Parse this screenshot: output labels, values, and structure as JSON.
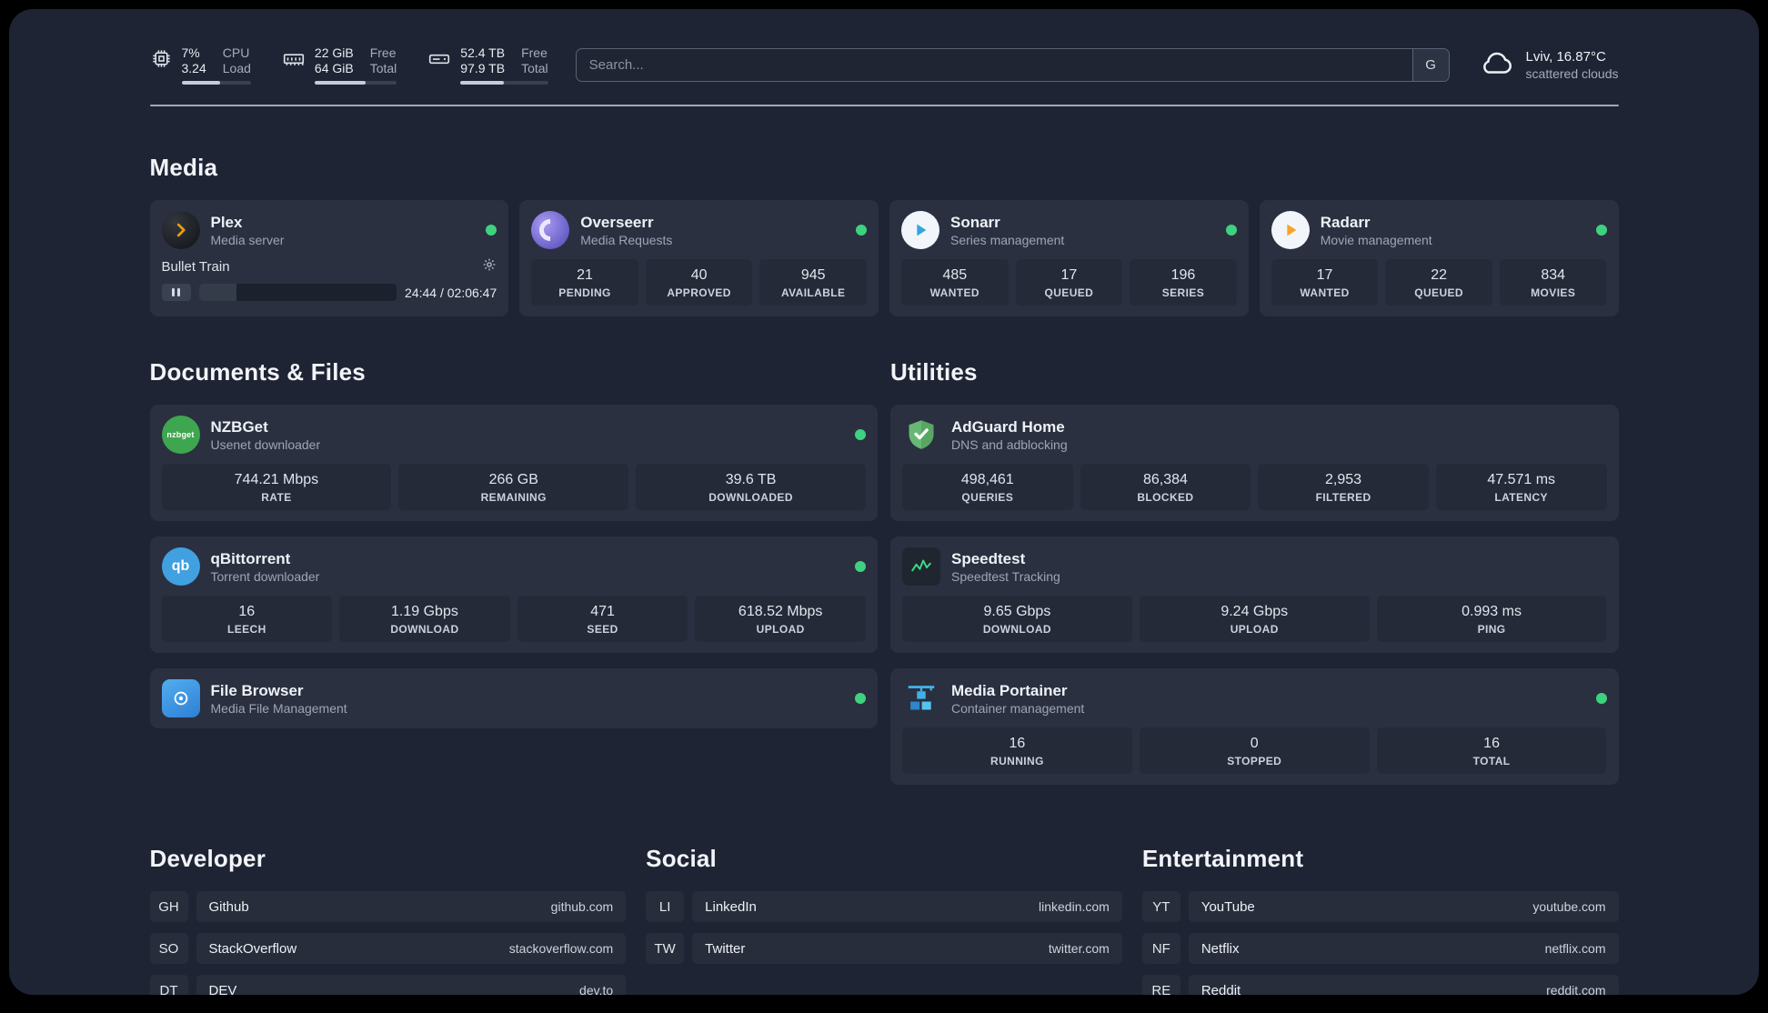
{
  "topbar": {
    "cpu": {
      "value_top": "7%",
      "value_bottom": "3.24",
      "label_top": "CPU",
      "label_bottom": "Load",
      "progress": 55
    },
    "memory": {
      "value_top": "22 GiB",
      "value_bottom": "64 GiB",
      "label_top": "Free",
      "label_bottom": "Total",
      "progress": 62
    },
    "disk": {
      "value_top": "52.4 TB",
      "value_bottom": "97.9 TB",
      "label_top": "Free",
      "label_bottom": "Total",
      "progress": 50
    },
    "search": {
      "placeholder": "Search...",
      "button_label": "G"
    },
    "weather": {
      "location": "Lviv, 16.87°C",
      "condition": "scattered clouds"
    }
  },
  "section_titles": {
    "media": "Media",
    "documents": "Documents & Files",
    "utilities": "Utilities",
    "developer": "Developer",
    "social": "Social",
    "entertainment": "Entertainment"
  },
  "apps": {
    "plex": {
      "name": "Plex",
      "desc": "Media server",
      "player_title": "Bullet Train",
      "player_time": "24:44 / 02:06:47",
      "player_progress": 19
    },
    "overseerr": {
      "name": "Overseerr",
      "desc": "Media Requests",
      "stats": [
        {
          "value": "21",
          "label": "PENDING"
        },
        {
          "value": "40",
          "label": "APPROVED"
        },
        {
          "value": "945",
          "label": "AVAILABLE"
        }
      ]
    },
    "sonarr": {
      "name": "Sonarr",
      "desc": "Series management",
      "stats": [
        {
          "value": "485",
          "label": "WANTED"
        },
        {
          "value": "17",
          "label": "QUEUED"
        },
        {
          "value": "196",
          "label": "SERIES"
        }
      ]
    },
    "radarr": {
      "name": "Radarr",
      "desc": "Movie management",
      "stats": [
        {
          "value": "17",
          "label": "WANTED"
        },
        {
          "value": "22",
          "label": "QUEUED"
        },
        {
          "value": "834",
          "label": "MOVIES"
        }
      ]
    },
    "nzbget": {
      "name": "NZBGet",
      "desc": "Usenet downloader",
      "icon_text": "nzbget",
      "stats": [
        {
          "value": "744.21 Mbps",
          "label": "RATE"
        },
        {
          "value": "266 GB",
          "label": "REMAINING"
        },
        {
          "value": "39.6 TB",
          "label": "DOWNLOADED"
        }
      ]
    },
    "qbittorrent": {
      "name": "qBittorrent",
      "desc": "Torrent downloader",
      "icon_text": "qb",
      "stats": [
        {
          "value": "16",
          "label": "LEECH"
        },
        {
          "value": "1.19 Gbps",
          "label": "DOWNLOAD"
        },
        {
          "value": "471",
          "label": "SEED"
        },
        {
          "value": "618.52 Mbps",
          "label": "UPLOAD"
        }
      ]
    },
    "filebrowser": {
      "name": "File Browser",
      "desc": "Media File Management"
    },
    "adguard": {
      "name": "AdGuard Home",
      "desc": "DNS and adblocking",
      "stats": [
        {
          "value": "498,461",
          "label": "QUERIES"
        },
        {
          "value": "86,384",
          "label": "BLOCKED"
        },
        {
          "value": "2,953",
          "label": "FILTERED"
        },
        {
          "value": "47.571 ms",
          "label": "LATENCY"
        }
      ]
    },
    "speedtest": {
      "name": "Speedtest",
      "desc": "Speedtest Tracking",
      "stats": [
        {
          "value": "9.65 Gbps",
          "label": "DOWNLOAD"
        },
        {
          "value": "9.24 Gbps",
          "label": "UPLOAD"
        },
        {
          "value": "0.993 ms",
          "label": "PING"
        }
      ]
    },
    "portainer": {
      "name": "Media Portainer",
      "desc": "Container management",
      "stats": [
        {
          "value": "16",
          "label": "RUNNING"
        },
        {
          "value": "0",
          "label": "STOPPED"
        },
        {
          "value": "16",
          "label": "TOTAL"
        }
      ]
    }
  },
  "bookmarks": {
    "developer": [
      {
        "abbr": "GH",
        "name": "Github",
        "domain": "github.com"
      },
      {
        "abbr": "SO",
        "name": "StackOverflow",
        "domain": "stackoverflow.com"
      },
      {
        "abbr": "DT",
        "name": "DEV",
        "domain": "dev.to"
      }
    ],
    "social": [
      {
        "abbr": "LI",
        "name": "LinkedIn",
        "domain": "linkedin.com"
      },
      {
        "abbr": "TW",
        "name": "Twitter",
        "domain": "twitter.com"
      }
    ],
    "entertainment": [
      {
        "abbr": "YT",
        "name": "YouTube",
        "domain": "youtube.com"
      },
      {
        "abbr": "NF",
        "name": "Netflix",
        "domain": "netflix.com"
      },
      {
        "abbr": "RE",
        "name": "Reddit",
        "domain": "reddit.com"
      }
    ]
  },
  "colors": {
    "status_online": "#3ed27f"
  }
}
